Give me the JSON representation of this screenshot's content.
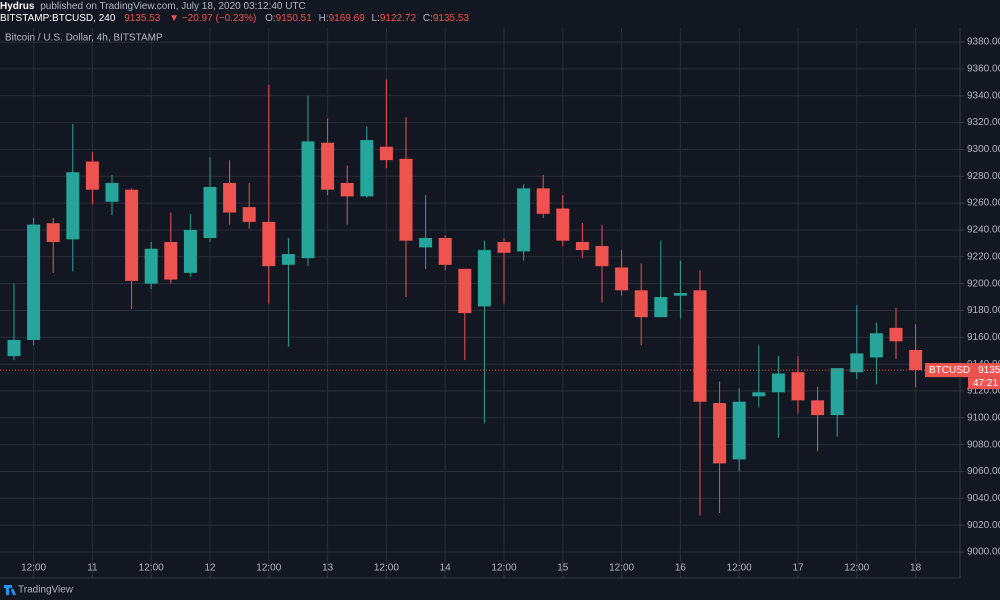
{
  "header": {
    "author": "Hydrus",
    "published": "published on TradingView.com, July 18, 2020 03:12:40 UTC",
    "symbol": "BITSTAMP:BTCUSD, 240",
    "change": "▼ −20.97 (−0.23%)",
    "ohlc_prefixes": [
      "O:",
      "H:",
      "L:",
      "C:"
    ]
  },
  "chart_data": {
    "type": "candlestick",
    "title": "Bitcoin / U.S. Dollar, 4h, BITSTAMP",
    "categories": [
      null,
      "12:00",
      null,
      null,
      "11",
      null,
      null,
      "12:00",
      null,
      null,
      "12",
      null,
      null,
      "12:00",
      null,
      null,
      "13",
      null,
      null,
      "12:00",
      null,
      null,
      "14",
      null,
      null,
      "12:00",
      null,
      null,
      "15",
      null,
      null,
      "12:00",
      null,
      null,
      "16",
      null,
      null,
      "12:00",
      null,
      null,
      "17",
      null,
      null,
      "12:00",
      null,
      null,
      "18"
    ],
    "open": [
      9146,
      9158,
      9245,
      9233,
      9291,
      9261,
      9270,
      9200,
      9231,
      9208,
      9234,
      9275,
      9257,
      9246,
      9214,
      9219,
      9305,
      9275,
      9265,
      9302,
      9293,
      9227,
      9234,
      9211,
      9183,
      9231,
      9224,
      9271,
      9256,
      9231,
      9228,
      9212,
      9195,
      9175,
      9191,
      9195,
      9111,
      9069,
      9116,
      9119,
      9134,
      9113,
      9102,
      9134,
      9145,
      9167,
      9150.51
    ],
    "high": [
      9200,
      9249,
      9249,
      9319,
      9298,
      9281,
      9271,
      9231,
      9253,
      9252,
      9294,
      9292,
      9275,
      9348,
      9234,
      9340,
      9323,
      9288,
      9317,
      9352,
      9324,
      9266,
      9236,
      9211,
      9232,
      9234,
      9274,
      9281,
      9266,
      9245,
      9244,
      9225,
      9215,
      9232,
      9217,
      9210,
      9127,
      9122,
      9154,
      9146,
      9146,
      9123,
      9137,
      9184,
      9171,
      9182,
      9169.69
    ],
    "low": [
      9143,
      9154,
      9208,
      9209,
      9259,
      9251,
      9181,
      9196,
      9200,
      9205,
      9231,
      9244,
      9241,
      9185,
      9153,
      9213,
      9266,
      9244,
      9264,
      9286,
      9190,
      9211,
      9210,
      9143,
      9096,
      9185,
      9217,
      9249,
      9228,
      9219,
      9186,
      9191,
      9154,
      9175,
      9174,
      9027,
      9029,
      9060,
      9108,
      9085,
      9103,
      9075,
      9086,
      9129,
      9125,
      9144,
      9122.72
    ],
    "close": [
      9158,
      9244,
      9231,
      9283,
      9270,
      9275,
      9202,
      9226,
      9203,
      9240,
      9272,
      9253,
      9246,
      9213,
      9222,
      9306,
      9270,
      9265,
      9307,
      9292,
      9232,
      9234,
      9214,
      9178,
      9225,
      9223,
      9271,
      9252,
      9232,
      9225,
      9213,
      9195,
      9175,
      9190,
      9193,
      9112,
      9066,
      9112,
      9119,
      9133,
      9113,
      9102,
      9137,
      9148,
      9163,
      9157,
      9135.53
    ],
    "colors": {
      "up": "#26a69a",
      "down": "#ef5350"
    },
    "ylim": [
      8980.6,
      9390.5
    ],
    "yticks": [
      {
        "value": 9000,
        "label": "9000.00"
      },
      {
        "value": 9020,
        "label": "9020.00"
      },
      {
        "value": 9040,
        "label": "9040.00"
      },
      {
        "value": 9060,
        "label": "9060.00"
      },
      {
        "value": 9080,
        "label": "9080.00"
      },
      {
        "value": 9100,
        "label": "9100.00"
      },
      {
        "value": 9120,
        "label": "9120.00"
      },
      {
        "value": 9140,
        "label": "9140.00"
      },
      {
        "value": 9160,
        "label": "9160.00"
      },
      {
        "value": 9180,
        "label": "9180.00"
      },
      {
        "value": 9200,
        "label": "9200.00"
      },
      {
        "value": 9220,
        "label": "9220.00"
      },
      {
        "value": 9240,
        "label": "9240.00"
      },
      {
        "value": 9260,
        "label": "9260.00"
      },
      {
        "value": 9280,
        "label": "9280.00"
      },
      {
        "value": 9300,
        "label": "9300.00"
      },
      {
        "value": 9320,
        "label": "9320.00"
      },
      {
        "value": 9340,
        "label": "9340.00"
      },
      {
        "value": 9360,
        "label": "9360.00"
      },
      {
        "value": 9380,
        "label": "9380.00"
      }
    ],
    "grid": true,
    "price_label": {
      "name": "BTCUSD",
      "countdown": "47:21"
    }
  },
  "footer": {
    "logo": "TradingView"
  }
}
